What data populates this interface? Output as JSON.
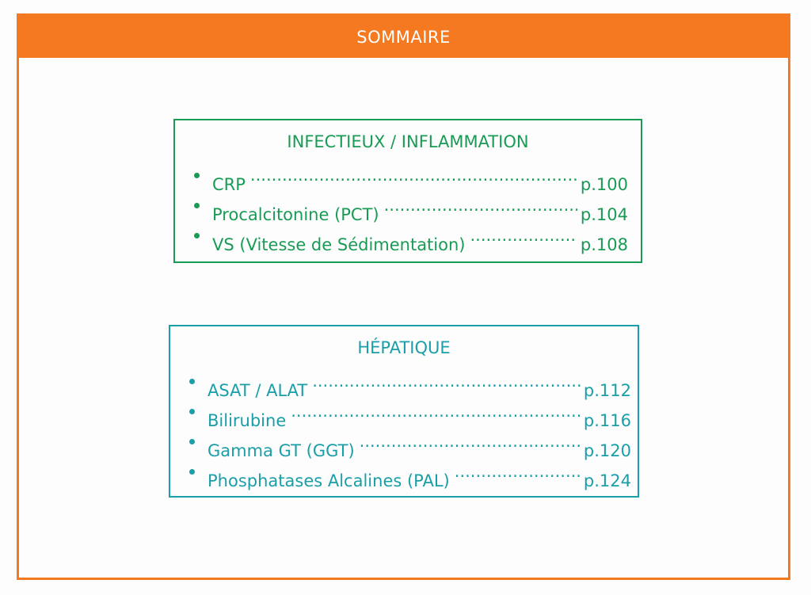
{
  "header": {
    "title": "SOMMAIRE"
  },
  "sections": [
    {
      "title": "INFECTIEUX / INFLAMMATION",
      "color": "#1a9b55",
      "entries": [
        {
          "label": "CRP",
          "page": "p.100"
        },
        {
          "label": "Procalcitonine (PCT)",
          "page": "p.104"
        },
        {
          "label": "VS (Vitesse de Sédimentation)",
          "page": "p.108"
        }
      ]
    },
    {
      "title": "HÉPATIQUE",
      "color": "#1a9ea8",
      "entries": [
        {
          "label": "ASAT / ALAT",
          "page": "p.112"
        },
        {
          "label": "Bilirubine",
          "page": "p.116"
        },
        {
          "label": "Gamma GT (GGT)",
          "page": "p.120"
        },
        {
          "label": "Phosphatases Alcalines (PAL)",
          "page": "p.124"
        }
      ]
    }
  ],
  "colors": {
    "accent": "#f47920"
  }
}
